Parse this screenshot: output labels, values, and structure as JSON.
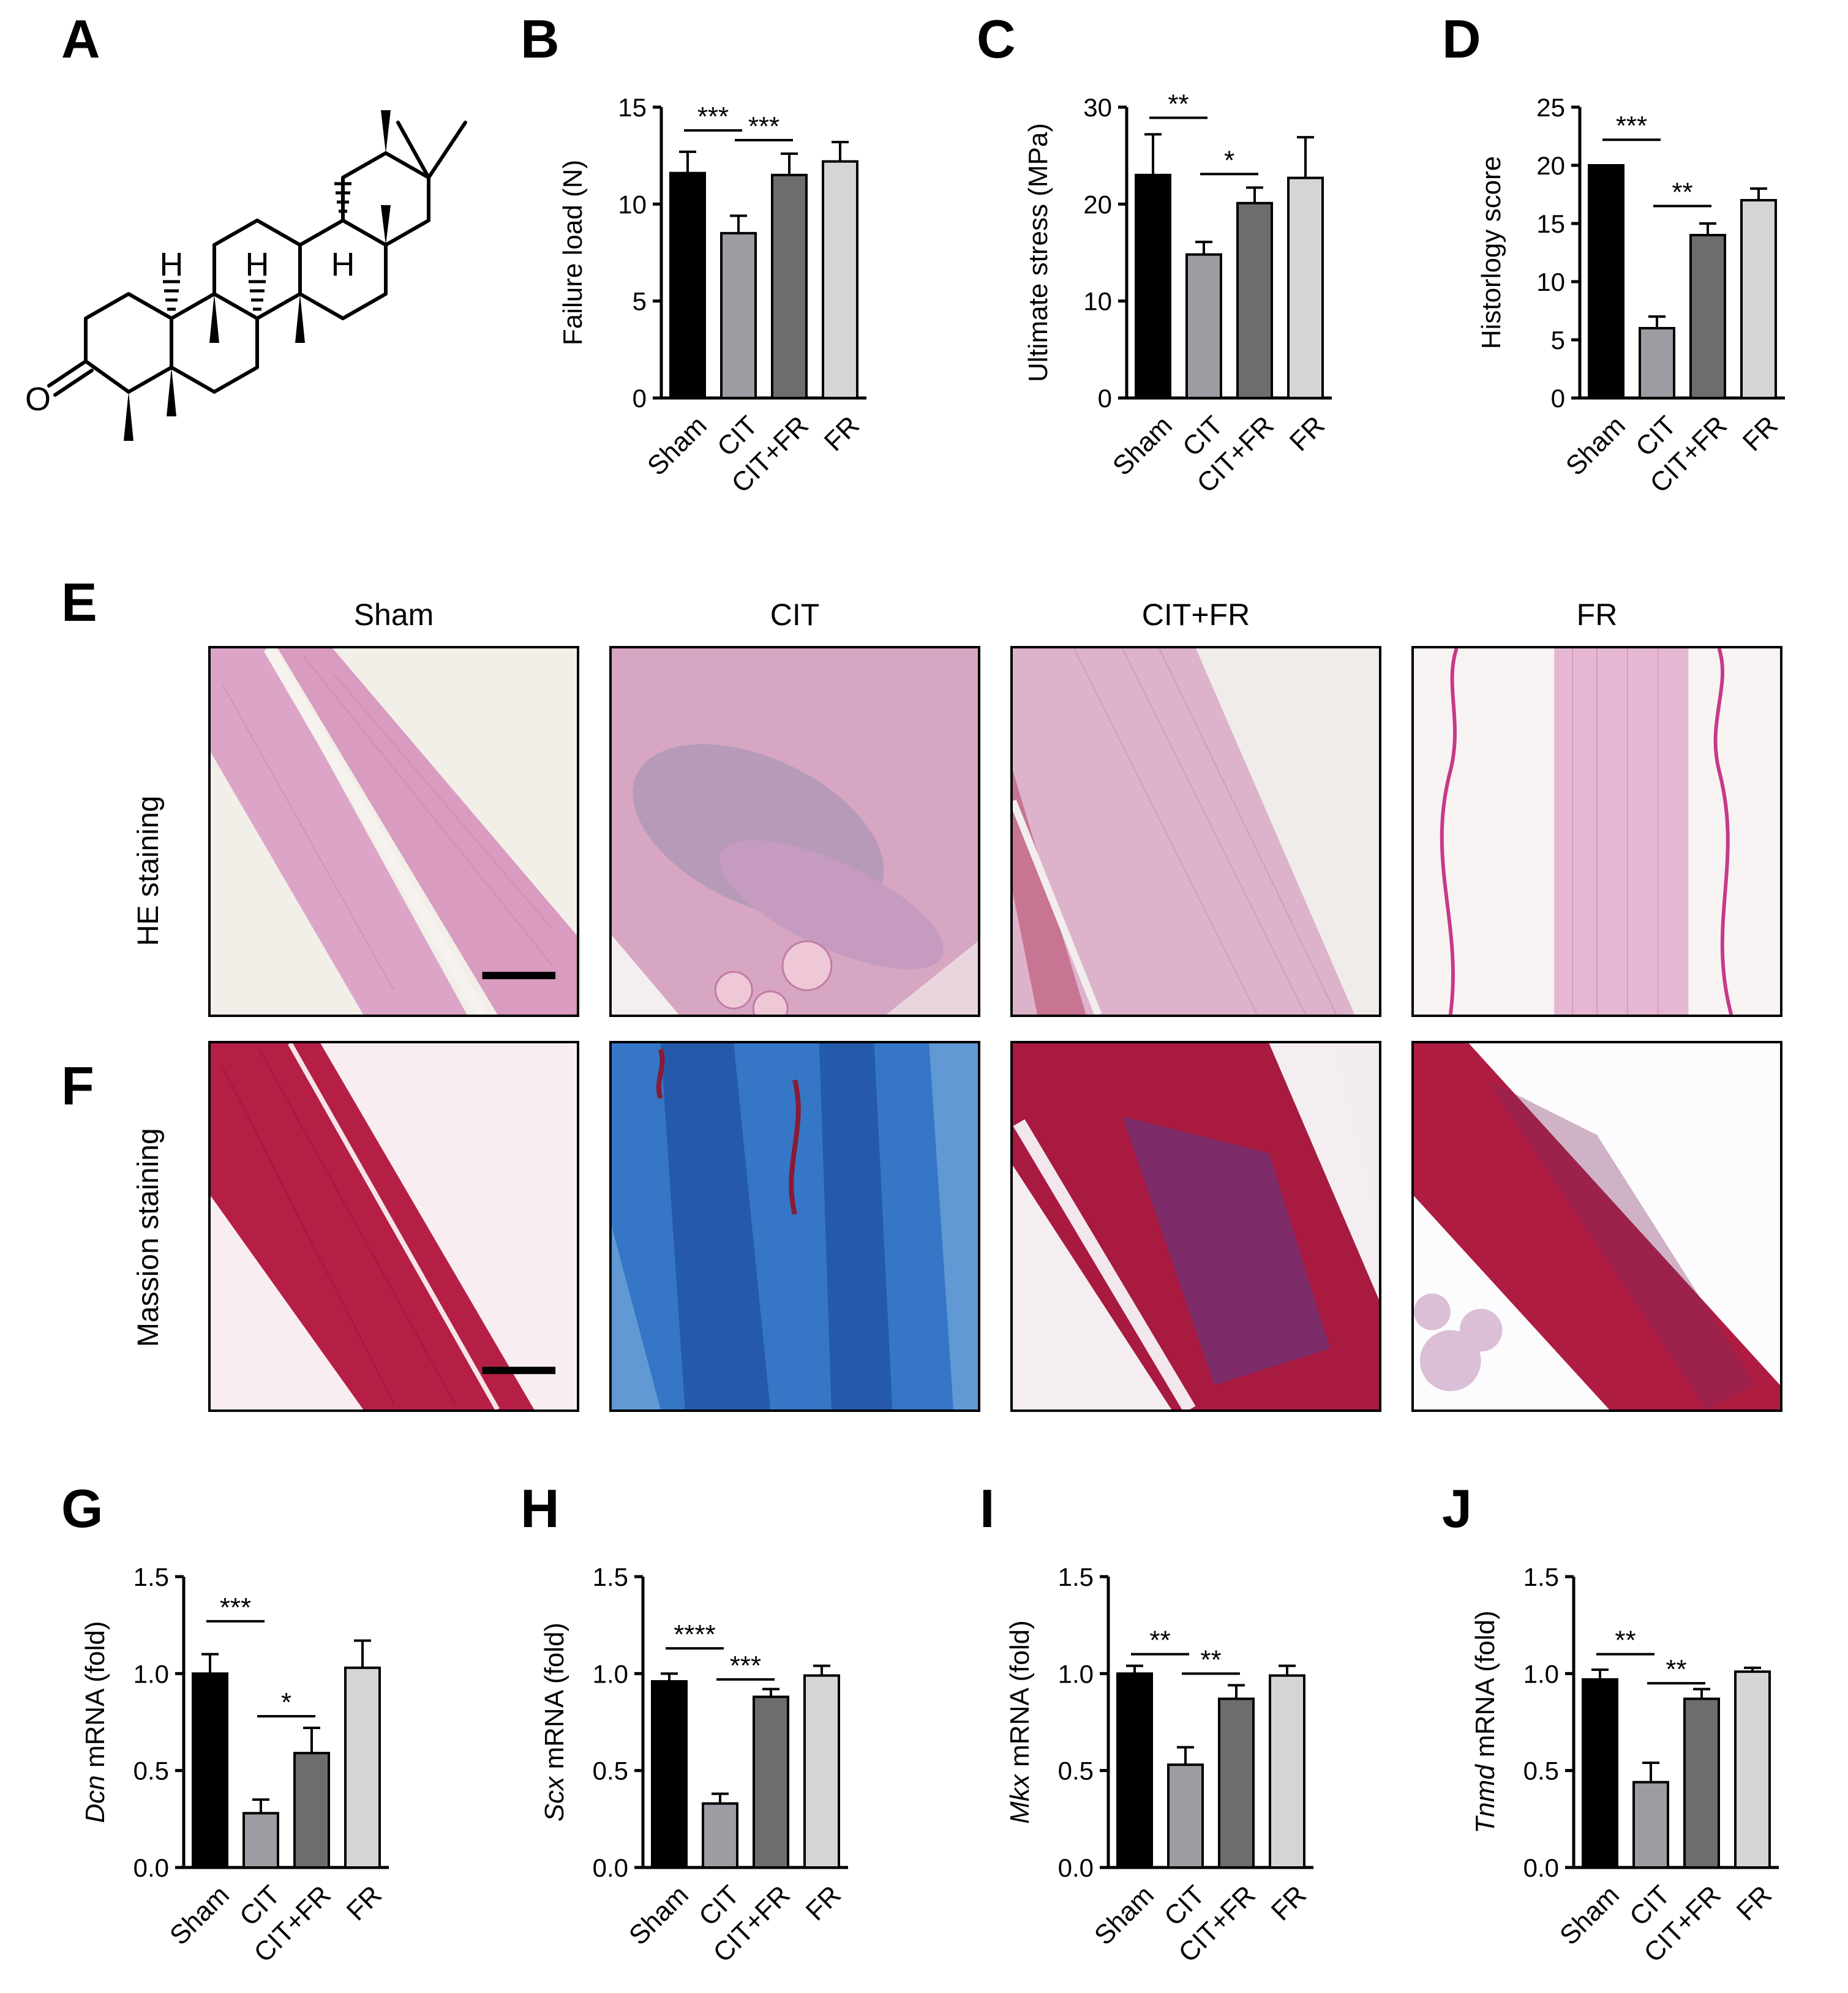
{
  "panel_letters": [
    "A",
    "B",
    "C",
    "D",
    "E",
    "F",
    "G",
    "H",
    "I",
    "J"
  ],
  "structure": {
    "H1": "H",
    "H2": "H",
    "H3": "H",
    "O": "O"
  },
  "micrographs": {
    "columns": [
      "Sham",
      "CIT",
      "CIT+FR",
      "FR"
    ],
    "rows": [
      "HE staining",
      "Massion staining"
    ],
    "colors": {
      "he_bg": "#f2ede8",
      "he_tissue": "#dba4c6",
      "masson_red": "#b8153a",
      "masson_blue": "#2f6fc2"
    }
  },
  "colors": {
    "Sham": "#000000",
    "CIT": "#9c9ca3",
    "CIT+FR": "#6d6d70",
    "FR": "#d5d5d5"
  },
  "chart_data": [
    {
      "panel": "B",
      "type": "bar",
      "categories": [
        "Sham",
        "CIT",
        "CIT+FR",
        "FR"
      ],
      "values": [
        11.6,
        8.5,
        11.5,
        12.2
      ],
      "errors": [
        1.1,
        0.9,
        1.1,
        1.0
      ],
      "ylabel": "Failure load (N)",
      "ylabel_italic": "",
      "ylim": [
        0,
        15
      ],
      "yticks": [
        "0",
        "5",
        "10",
        "15"
      ],
      "sig": [
        {
          "from": 0,
          "to": 1,
          "label": "***",
          "y": 13.8
        },
        {
          "from": 1,
          "to": 2,
          "label": "***",
          "y": 13.3
        }
      ]
    },
    {
      "panel": "C",
      "type": "bar",
      "categories": [
        "Sham",
        "CIT",
        "CIT+FR",
        "FR"
      ],
      "values": [
        23.0,
        14.8,
        20.1,
        22.7
      ],
      "errors": [
        4.2,
        1.3,
        1.6,
        4.2
      ],
      "ylabel": "Ultimate stress (MPa)",
      "ylabel_italic": "",
      "ylim": [
        0,
        30
      ],
      "yticks": [
        "0",
        "10",
        "20",
        "30"
      ],
      "sig": [
        {
          "from": 0,
          "to": 1,
          "label": "**",
          "y": 28.9
        },
        {
          "from": 1,
          "to": 2,
          "label": "*",
          "y": 23.1
        }
      ]
    },
    {
      "panel": "D",
      "type": "bar",
      "categories": [
        "Sham",
        "CIT",
        "CIT+FR",
        "FR"
      ],
      "values": [
        20,
        6,
        14,
        17
      ],
      "errors": [
        0,
        1,
        1,
        1
      ],
      "ylabel": "Historlogy score",
      "ylabel_italic": "",
      "ylim": [
        0,
        25
      ],
      "yticks": [
        "0",
        "5",
        "10",
        "15",
        "20",
        "25"
      ],
      "sig": [
        {
          "from": 0,
          "to": 1,
          "label": "***",
          "y": 22.2
        },
        {
          "from": 1,
          "to": 2,
          "label": "**",
          "y": 16.5
        }
      ]
    },
    {
      "panel": "G",
      "type": "bar",
      "categories": [
        "Sham",
        "CIT",
        "CIT+FR",
        "FR"
      ],
      "values": [
        1.0,
        0.28,
        0.59,
        1.03
      ],
      "errors": [
        0.1,
        0.07,
        0.13,
        0.14
      ],
      "ylabel": " mRNA (fold)",
      "ylabel_italic": "Dcn",
      "ylim": [
        0,
        1.5
      ],
      "yticks": [
        "0.0",
        "0.5",
        "1.0",
        "1.5"
      ],
      "sig": [
        {
          "from": 0,
          "to": 1,
          "label": "***",
          "y": 1.27
        },
        {
          "from": 1,
          "to": 2,
          "label": "*",
          "y": 0.78
        }
      ]
    },
    {
      "panel": "H",
      "type": "bar",
      "categories": [
        "Sham",
        "CIT",
        "CIT+FR",
        "FR"
      ],
      "values": [
        0.96,
        0.33,
        0.88,
        0.99
      ],
      "errors": [
        0.04,
        0.05,
        0.04,
        0.05
      ],
      "ylabel": " mRNA (fold)",
      "ylabel_italic": "Scx",
      "ylim": [
        0,
        1.5
      ],
      "yticks": [
        "0.0",
        "0.5",
        "1.0",
        "1.5"
      ],
      "sig": [
        {
          "from": 0,
          "to": 1,
          "label": "****",
          "y": 1.13
        },
        {
          "from": 1,
          "to": 2,
          "label": "***",
          "y": 0.97
        }
      ]
    },
    {
      "panel": "I",
      "type": "bar",
      "categories": [
        "Sham",
        "CIT",
        "CIT+FR",
        "FR"
      ],
      "values": [
        1.0,
        0.53,
        0.87,
        0.99
      ],
      "errors": [
        0.04,
        0.09,
        0.07,
        0.05
      ],
      "ylabel": " mRNA (fold)",
      "ylabel_italic": "Mkx",
      "ylim": [
        0,
        1.5
      ],
      "yticks": [
        "0.0",
        "0.5",
        "1.0",
        "1.5"
      ],
      "sig": [
        {
          "from": 0,
          "to": 1,
          "label": "**",
          "y": 1.1
        },
        {
          "from": 1,
          "to": 2,
          "label": "**",
          "y": 1.0
        }
      ]
    },
    {
      "panel": "J",
      "type": "bar",
      "categories": [
        "Sham",
        "CIT",
        "CIT+FR",
        "FR"
      ],
      "values": [
        0.97,
        0.44,
        0.87,
        1.01
      ],
      "errors": [
        0.05,
        0.1,
        0.05,
        0.02
      ],
      "ylabel": " mRNA (fold)",
      "ylabel_italic": "Tnmd",
      "ylim": [
        0,
        1.5
      ],
      "yticks": [
        "0.0",
        "0.5",
        "1.0",
        "1.5"
      ],
      "sig": [
        {
          "from": 0,
          "to": 1,
          "label": "**",
          "y": 1.1
        },
        {
          "from": 1,
          "to": 2,
          "label": "**",
          "y": 0.95
        }
      ]
    }
  ]
}
